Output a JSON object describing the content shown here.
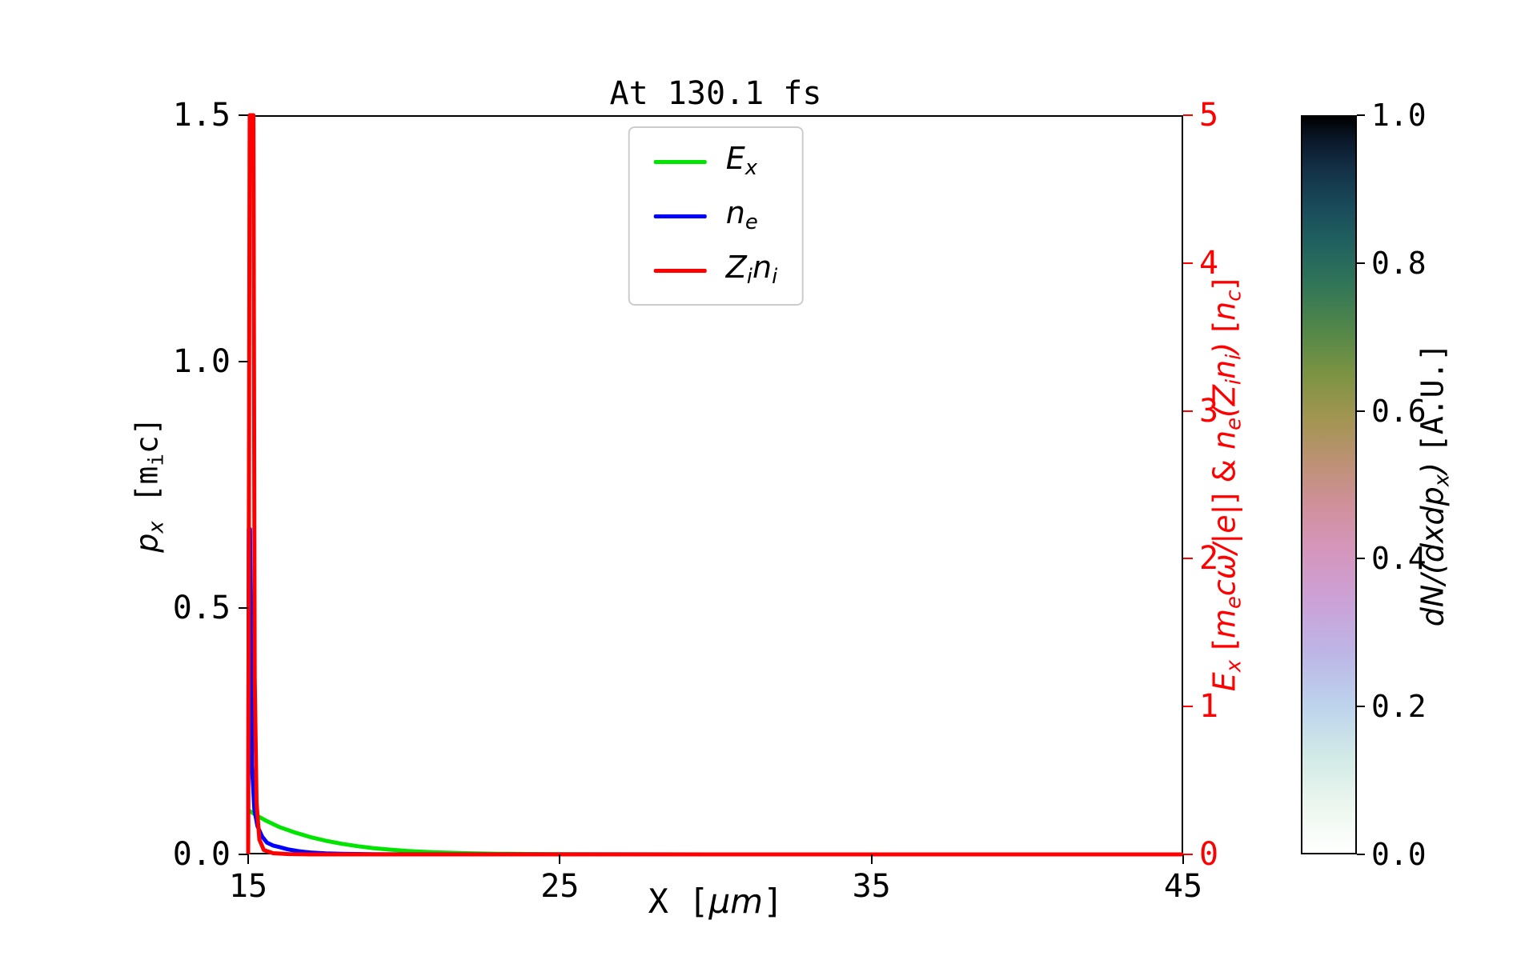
{
  "chart_data": {
    "type": "line",
    "title": "At 130.1 fs",
    "xlabel": "X [μm]",
    "ylabel_left": "p_x [m_i c]",
    "ylabel_right": "E_x [m_e cω/|e|] & n_e(Z_i n_i) [n_c]",
    "colorbar_label": "dN/(dxdp_x) [A.U.]",
    "xlim": [
      15,
      45
    ],
    "ylim_left": [
      0,
      1.5
    ],
    "ylim_right": [
      0,
      5
    ],
    "colorbar_range": [
      0,
      1
    ],
    "grid": false,
    "legend_position": "upper center inside",
    "axis_color_left": "#000000",
    "axis_color_right": "#ff0000",
    "x_ticks": {
      "values": [
        15,
        25,
        35,
        45
      ],
      "labels": [
        "15",
        "25",
        "35",
        "45"
      ]
    },
    "y_ticks_left": {
      "values": [
        0,
        0.5,
        1.0,
        1.5
      ],
      "labels": [
        "0.0",
        "0.5",
        "1.0",
        "1.5"
      ]
    },
    "y_ticks_right": {
      "values": [
        0,
        1,
        2,
        3,
        4,
        5
      ],
      "labels": [
        "0",
        "1",
        "2",
        "3",
        "4",
        "5"
      ]
    },
    "colorbar_ticks": {
      "values": [
        0,
        0.2,
        0.4,
        0.6,
        0.8,
        1.0
      ],
      "labels": [
        "0.0",
        "0.2",
        "0.4",
        "0.6",
        "0.8",
        "1.0"
      ]
    },
    "xlabel_rich": [
      {
        "t": "X [",
        "s": "m"
      },
      {
        "t": "μm",
        "s": "i"
      },
      {
        "t": "]",
        "s": "m"
      }
    ],
    "ylabel_left_rich": [
      {
        "t": "p",
        "s": "i"
      },
      {
        "t": "x",
        "s": "si"
      },
      {
        "t": " [",
        "s": "m"
      },
      {
        "t": "m",
        "s": "m"
      },
      {
        "t": "i",
        "s": "sm"
      },
      {
        "t": "c]",
        "s": "m"
      }
    ],
    "ylabel_right_rich": [
      {
        "t": "E",
        "s": "i"
      },
      {
        "t": "x",
        "s": "si"
      },
      {
        "t": " [",
        "s": "n"
      },
      {
        "t": "m",
        "s": "i"
      },
      {
        "t": "e",
        "s": "si"
      },
      {
        "t": "cω",
        "s": "i"
      },
      {
        "t": "/|e|",
        "s": "i"
      },
      {
        "t": "] & ",
        "s": "n"
      },
      {
        "t": "n",
        "s": "i"
      },
      {
        "t": "e",
        "s": "si"
      },
      {
        "t": "(",
        "s": "i"
      },
      {
        "t": "Z",
        "s": "i"
      },
      {
        "t": "i",
        "s": "si"
      },
      {
        "t": "n",
        "s": "i"
      },
      {
        "t": "i",
        "s": "si"
      },
      {
        "t": ")",
        "s": "i"
      },
      {
        "t": " [",
        "s": "n"
      },
      {
        "t": "n",
        "s": "i"
      },
      {
        "t": "c",
        "s": "si"
      },
      {
        "t": "]",
        "s": "n"
      }
    ],
    "colorbar_label_rich": [
      {
        "t": "dN",
        "s": "i"
      },
      {
        "t": "/(",
        "s": "i"
      },
      {
        "t": "dxdp",
        "s": "i"
      },
      {
        "t": "x",
        "s": "si"
      },
      {
        "t": ")",
        "s": "i"
      },
      {
        "t": " ",
        "s": "n"
      },
      {
        "t": "[A.U.]",
        "s": "m"
      }
    ],
    "series": [
      {
        "name": "E_x",
        "color": "#00e500",
        "axis": "right",
        "label_rich": [
          {
            "t": "E",
            "s": "i"
          },
          {
            "t": "x",
            "s": "si"
          }
        ],
        "points": [
          [
            15,
            0.3
          ],
          [
            15.3,
            0.26
          ],
          [
            15.6,
            0.225
          ],
          [
            16,
            0.185
          ],
          [
            16.5,
            0.148
          ],
          [
            17,
            0.117
          ],
          [
            17.5,
            0.092
          ],
          [
            18,
            0.072
          ],
          [
            18.5,
            0.056
          ],
          [
            19,
            0.043
          ],
          [
            19.5,
            0.033
          ],
          [
            20,
            0.025
          ],
          [
            20.5,
            0.019
          ],
          [
            21,
            0.014
          ],
          [
            22,
            0.008
          ],
          [
            23,
            0.0045
          ],
          [
            24,
            0.0025
          ],
          [
            25,
            0.0015
          ],
          [
            27,
            0.0006
          ],
          [
            30,
            0.0002
          ],
          [
            45,
            0
          ]
        ]
      },
      {
        "name": "n_e",
        "color": "#0000ff",
        "axis": "right",
        "label_rich": [
          {
            "t": "n",
            "s": "i"
          },
          {
            "t": "e",
            "s": "si"
          }
        ],
        "points": [
          [
            15,
            0
          ],
          [
            15.02,
            2.2
          ],
          [
            15.06,
            2.2
          ],
          [
            15.12,
            0.6
          ],
          [
            15.2,
            0.3
          ],
          [
            15.3,
            0.19
          ],
          [
            15.45,
            0.12
          ],
          [
            15.6,
            0.08
          ],
          [
            15.8,
            0.06
          ],
          [
            16,
            0.05
          ],
          [
            16.3,
            0.033
          ],
          [
            16.6,
            0.022
          ],
          [
            17,
            0.013
          ],
          [
            17.5,
            0.007
          ],
          [
            18,
            0.004
          ],
          [
            19,
            0.0015
          ],
          [
            20,
            0.0005
          ],
          [
            45,
            0
          ]
        ]
      },
      {
        "name": "Z_i n_i",
        "color": "#ff0000",
        "axis": "right",
        "label_rich": [
          {
            "t": "Z",
            "s": "i"
          },
          {
            "t": "i",
            "s": "si"
          },
          {
            "t": "n",
            "s": "i"
          },
          {
            "t": "i",
            "s": "si"
          }
        ],
        "points": [
          [
            15,
            0
          ],
          [
            15.05,
            5
          ],
          [
            15.17,
            5
          ],
          [
            15.21,
            1.2
          ],
          [
            15.27,
            0.35
          ],
          [
            15.36,
            0.1
          ],
          [
            15.5,
            0.03
          ],
          [
            15.8,
            0.008
          ],
          [
            16.3,
            0.002
          ],
          [
            17,
            0
          ],
          [
            45,
            0
          ]
        ]
      }
    ],
    "colorbar_gradient": [
      {
        "pos": 0.0,
        "color": "#ffffff"
      },
      {
        "pos": 0.06,
        "color": "#edf7ef"
      },
      {
        "pos": 0.13,
        "color": "#d2eae6"
      },
      {
        "pos": 0.2,
        "color": "#bdd3ed"
      },
      {
        "pos": 0.27,
        "color": "#bdb6e6"
      },
      {
        "pos": 0.34,
        "color": "#cba2d8"
      },
      {
        "pos": 0.41,
        "color": "#d596bd"
      },
      {
        "pos": 0.47,
        "color": "#d0909c"
      },
      {
        "pos": 0.53,
        "color": "#bd9175"
      },
      {
        "pos": 0.59,
        "color": "#a29552"
      },
      {
        "pos": 0.65,
        "color": "#7c9343"
      },
      {
        "pos": 0.71,
        "color": "#538749"
      },
      {
        "pos": 0.77,
        "color": "#327658"
      },
      {
        "pos": 0.83,
        "color": "#20605f"
      },
      {
        "pos": 0.88,
        "color": "#194a5a"
      },
      {
        "pos": 0.93,
        "color": "#132f46"
      },
      {
        "pos": 0.97,
        "color": "#0a1728"
      },
      {
        "pos": 1.0,
        "color": "#000000"
      }
    ]
  }
}
